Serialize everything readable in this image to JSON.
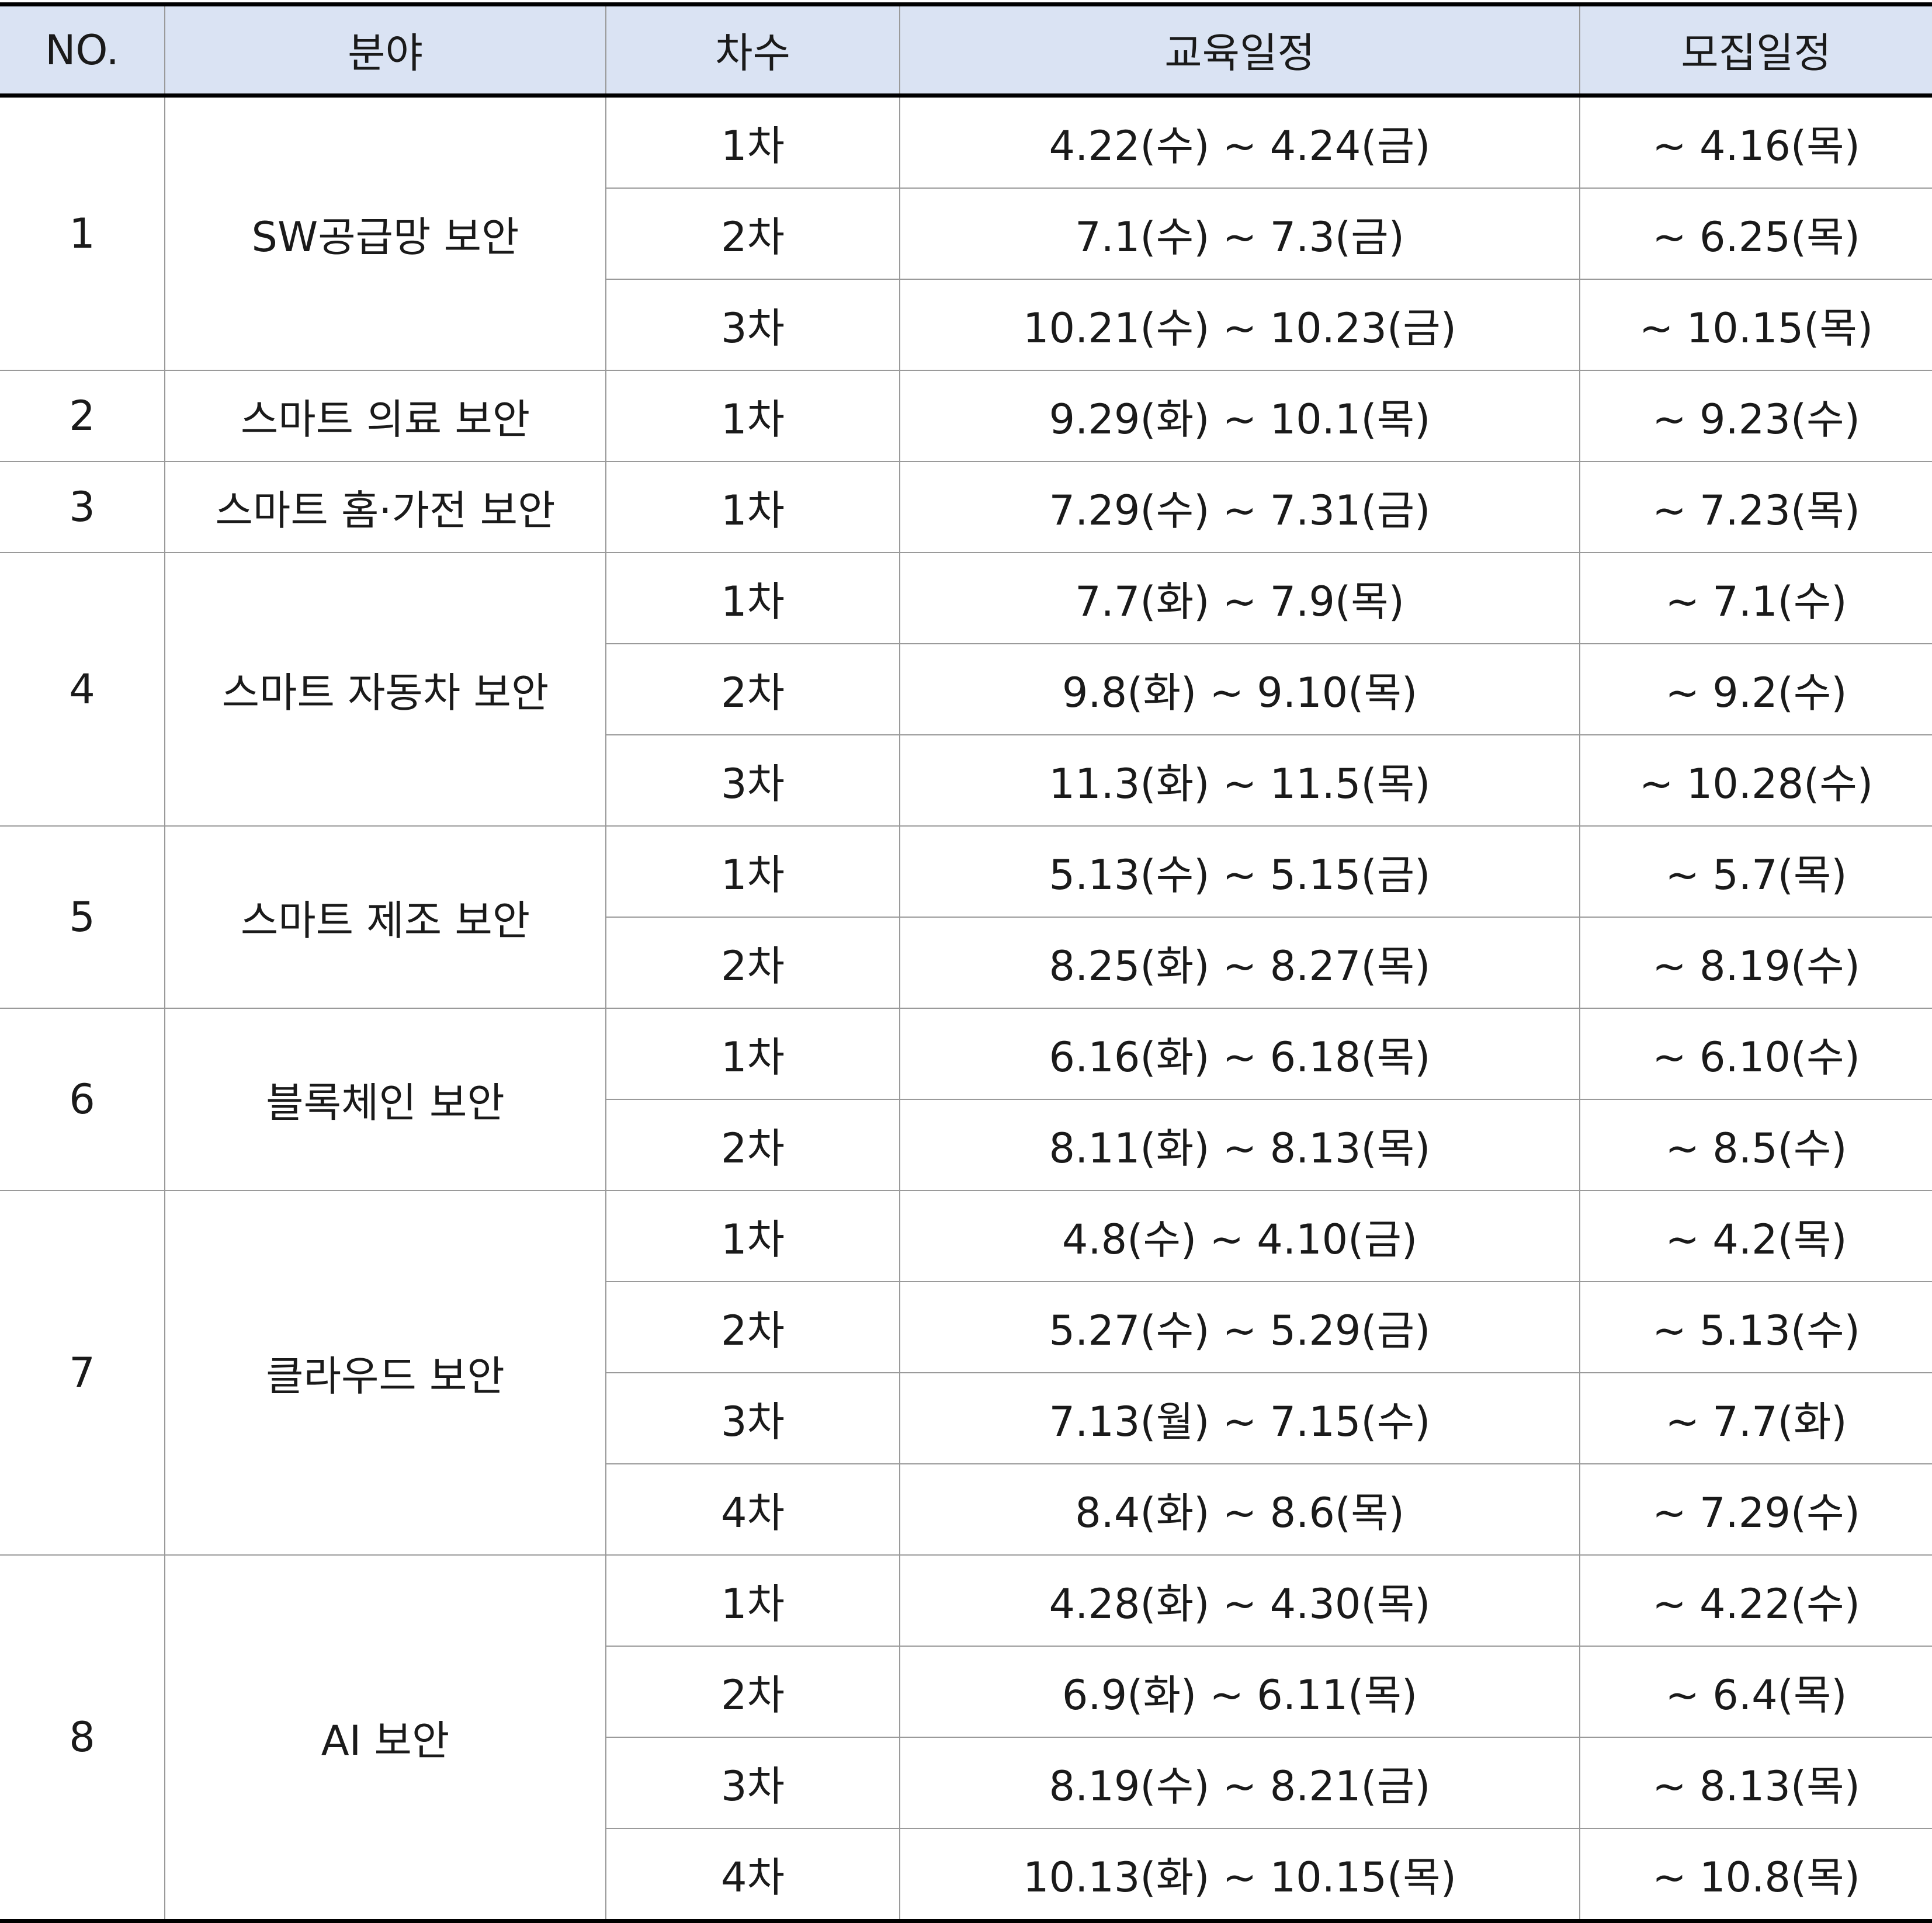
{
  "headers": {
    "no": "NO.",
    "field": "분야",
    "round": "차수",
    "education": "교육일정",
    "recruit": "모집일정"
  },
  "groups": [
    {
      "no": "1",
      "field": "SW공급망 보안",
      "sessions": [
        {
          "round": "1차",
          "education": "4.22(수) ~ 4.24(금)",
          "recruit": "~ 4.16(목)"
        },
        {
          "round": "2차",
          "education": "7.1(수) ~ 7.3(금)",
          "recruit": "~ 6.25(목)"
        },
        {
          "round": "3차",
          "education": "10.21(수) ~ 10.23(금)",
          "recruit": "~ 10.15(목)"
        }
      ]
    },
    {
      "no": "2",
      "field": "스마트 의료 보안",
      "sessions": [
        {
          "round": "1차",
          "education": "9.29(화) ~ 10.1(목)",
          "recruit": "~ 9.23(수)"
        }
      ]
    },
    {
      "no": "3",
      "field": "스마트 홈·가전 보안",
      "sessions": [
        {
          "round": "1차",
          "education": "7.29(수) ~ 7.31(금)",
          "recruit": "~ 7.23(목)"
        }
      ]
    },
    {
      "no": "4",
      "field": "스마트 자동차 보안",
      "sessions": [
        {
          "round": "1차",
          "education": "7.7(화) ~ 7.9(목)",
          "recruit": "~ 7.1(수)"
        },
        {
          "round": "2차",
          "education": "9.8(화) ~ 9.10(목)",
          "recruit": "~ 9.2(수)"
        },
        {
          "round": "3차",
          "education": "11.3(화) ~ 11.5(목)",
          "recruit": "~ 10.28(수)"
        }
      ]
    },
    {
      "no": "5",
      "field": "스마트 제조 보안",
      "sessions": [
        {
          "round": "1차",
          "education": "5.13(수) ~ 5.15(금)",
          "recruit": "~ 5.7(목)"
        },
        {
          "round": "2차",
          "education": "8.25(화) ~ 8.27(목)",
          "recruit": "~ 8.19(수)"
        }
      ]
    },
    {
      "no": "6",
      "field": "블록체인 보안",
      "sessions": [
        {
          "round": "1차",
          "education": "6.16(화) ~ 6.18(목)",
          "recruit": "~ 6.10(수)"
        },
        {
          "round": "2차",
          "education": "8.11(화) ~ 8.13(목)",
          "recruit": "~ 8.5(수)"
        }
      ]
    },
    {
      "no": "7",
      "field": "클라우드 보안",
      "sessions": [
        {
          "round": "1차",
          "education": "4.8(수) ~ 4.10(금)",
          "recruit": "~ 4.2(목)"
        },
        {
          "round": "2차",
          "education": "5.27(수) ~ 5.29(금)",
          "recruit": "~ 5.13(수)"
        },
        {
          "round": "3차",
          "education": "7.13(월) ~ 7.15(수)",
          "recruit": "~ 7.7(화)"
        },
        {
          "round": "4차",
          "education": "8.4(화) ~ 8.6(목)",
          "recruit": "~ 7.29(수)"
        }
      ]
    },
    {
      "no": "8",
      "field": "AI 보안",
      "sessions": [
        {
          "round": "1차",
          "education": "4.28(화) ~ 4.30(목)",
          "recruit": "~ 4.22(수)"
        },
        {
          "round": "2차",
          "education": "6.9(화) ~ 6.11(목)",
          "recruit": "~ 6.4(목)"
        },
        {
          "round": "3차",
          "education": "8.19(수) ~ 8.21(금)",
          "recruit": "~ 8.13(목)"
        },
        {
          "round": "4차",
          "education": "10.13(화) ~ 10.15(목)",
          "recruit": "~ 10.8(목)"
        }
      ]
    }
  ]
}
